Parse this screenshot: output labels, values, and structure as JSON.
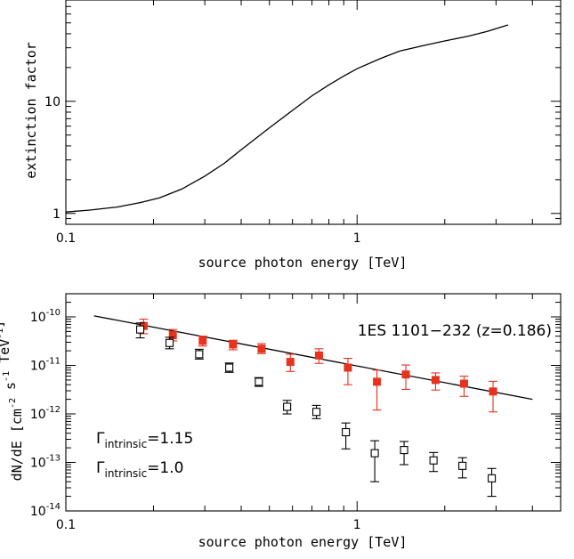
{
  "chart_data": [
    {
      "type": "line",
      "xlabel": "source photon energy [TeV]",
      "ylabel": "extinction factor",
      "xscale": "log",
      "yscale": "log",
      "xlim": [
        0.1,
        5.0
      ],
      "ylim": [
        0.8,
        80
      ],
      "x_tick_labels": [
        "0.1",
        "1"
      ],
      "y_tick_labels": [
        "1",
        "10"
      ],
      "series": [
        {
          "x": [
            0.1,
            0.12,
            0.15,
            0.18,
            0.21,
            0.25,
            0.3,
            0.35,
            0.4,
            0.5,
            0.6,
            0.7,
            0.8,
            0.9,
            1.0,
            1.2,
            1.4,
            1.7,
            2.0,
            2.4,
            2.8,
            3.3
          ],
          "y": [
            1.03,
            1.07,
            1.14,
            1.25,
            1.38,
            1.65,
            2.15,
            2.8,
            3.7,
            5.8,
            8.3,
            11.2,
            14.0,
            16.8,
            19.5,
            24.0,
            28.0,
            31.5,
            34.5,
            38.0,
            42.0,
            48.0
          ],
          "color": "#000000"
        }
      ]
    },
    {
      "type": "scatter",
      "xlabel": "source photon energy [TeV]",
      "ylabel": "dN/dE  [cm^-2 s^-1 TeV^-1]",
      "xscale": "log",
      "yscale": "log",
      "xlim": [
        0.1,
        5.0
      ],
      "ylim": [
        1e-14,
        3e-10
      ],
      "x_tick_labels": [
        "0.1",
        "1"
      ],
      "y_tick_labels": [
        "10^-14",
        "10^-13",
        "10^-12",
        "10^-11",
        "10^-10"
      ],
      "annotations": {
        "source": "1ES 1101−232 (z=0.186)",
        "gamma_symbol": "Γ",
        "gamma_subscript": "intrinsic",
        "gamma_red_value": "=1.15",
        "gamma_black_value": "=1.0"
      },
      "fit_line": {
        "x": [
          0.125,
          4.0
        ],
        "y": [
          1.05e-10,
          2e-12
        ],
        "color": "#000000"
      },
      "series": [
        {
          "marker": "filled-square",
          "color": "#e8321e",
          "points": [
            {
              "x": 0.185,
              "y": 6.5e-11,
              "ylo": 4.5e-11,
              "yhi": 9e-11
            },
            {
              "x": 0.233,
              "y": 4.2e-11,
              "ylo": 3.2e-11,
              "yhi": 5.5e-11
            },
            {
              "x": 0.295,
              "y": 3.2e-11,
              "ylo": 2.5e-11,
              "yhi": 4e-11
            },
            {
              "x": 0.375,
              "y": 2.7e-11,
              "ylo": 2.1e-11,
              "yhi": 3.3e-11
            },
            {
              "x": 0.47,
              "y": 2.2e-11,
              "ylo": 1.75e-11,
              "yhi": 2.8e-11
            },
            {
              "x": 0.59,
              "y": 1.18e-11,
              "ylo": 7.5e-12,
              "yhi": 1.7e-11
            },
            {
              "x": 0.74,
              "y": 1.6e-11,
              "ylo": 1.1e-11,
              "yhi": 2.2e-11
            },
            {
              "x": 0.93,
              "y": 9e-12,
              "ylo": 4e-12,
              "yhi": 1.4e-11
            },
            {
              "x": 1.17,
              "y": 4.6e-12,
              "ylo": 1.2e-12,
              "yhi": 8e-12
            },
            {
              "x": 1.47,
              "y": 6.5e-12,
              "ylo": 3.2e-12,
              "yhi": 1.02e-11
            },
            {
              "x": 1.86,
              "y": 5e-12,
              "ylo": 3.1e-12,
              "yhi": 7e-12
            },
            {
              "x": 2.33,
              "y": 4.2e-12,
              "ylo": 2.3e-12,
              "yhi": 6e-12
            },
            {
              "x": 2.93,
              "y": 2.9e-12,
              "ylo": 1.1e-12,
              "yhi": 4.7e-12
            }
          ]
        },
        {
          "marker": "open-square",
          "color": "#000000",
          "points": [
            {
              "x": 0.18,
              "y": 5.5e-11,
              "ylo": 3.7e-11,
              "yhi": 7.5e-11
            },
            {
              "x": 0.227,
              "y": 2.9e-11,
              "ylo": 2.2e-11,
              "yhi": 3.8e-11
            },
            {
              "x": 0.287,
              "y": 1.7e-11,
              "ylo": 1.35e-11,
              "yhi": 2.15e-11
            },
            {
              "x": 0.364,
              "y": 9e-12,
              "ylo": 7.2e-12,
              "yhi": 1.12e-11
            },
            {
              "x": 0.46,
              "y": 4.6e-12,
              "ylo": 3.7e-12,
              "yhi": 5.6e-12
            },
            {
              "x": 0.575,
              "y": 1.4e-12,
              "ylo": 1e-12,
              "yhi": 1.9e-12
            },
            {
              "x": 0.725,
              "y": 1.1e-12,
              "ylo": 8e-13,
              "yhi": 1.5e-12
            },
            {
              "x": 0.915,
              "y": 4.2e-13,
              "ylo": 1.9e-13,
              "yhi": 6.5e-13
            },
            {
              "x": 1.15,
              "y": 1.55e-13,
              "ylo": 4e-14,
              "yhi": 2.8e-13
            },
            {
              "x": 1.45,
              "y": 1.8e-13,
              "ylo": 9e-14,
              "yhi": 2.7e-13
            },
            {
              "x": 1.83,
              "y": 1.1e-13,
              "ylo": 6.5e-14,
              "yhi": 1.6e-13
            },
            {
              "x": 2.3,
              "y": 8.5e-14,
              "ylo": 4.8e-14,
              "yhi": 1.25e-13
            },
            {
              "x": 2.9,
              "y": 4.7e-14,
              "ylo": 2e-14,
              "yhi": 7.5e-14
            }
          ]
        }
      ]
    }
  ]
}
